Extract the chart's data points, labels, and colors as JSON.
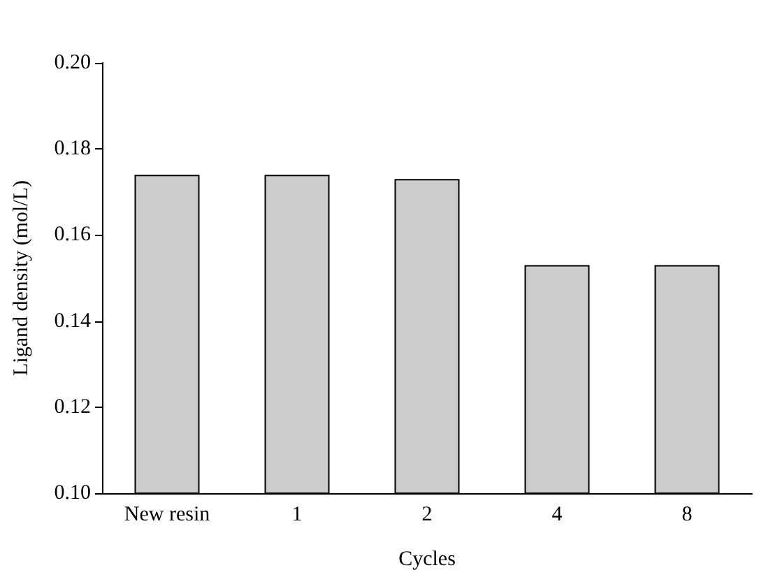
{
  "chart_data": {
    "type": "bar",
    "xlabel": "Cycles",
    "ylabel": "Ligand density (mol/L)",
    "categories": [
      "New resin",
      "1",
      "2",
      "4",
      "8"
    ],
    "values": [
      0.174,
      0.174,
      0.173,
      0.153,
      0.153
    ],
    "color": "#cccccc",
    "ylim": [
      0.1,
      0.2
    ],
    "yticks": [
      {
        "value": 0.1,
        "label": "0.10"
      },
      0.12,
      0.14,
      0.16,
      0.18,
      {
        "value": 0.2,
        "label": "0.20"
      }
    ],
    "grid": false
  }
}
